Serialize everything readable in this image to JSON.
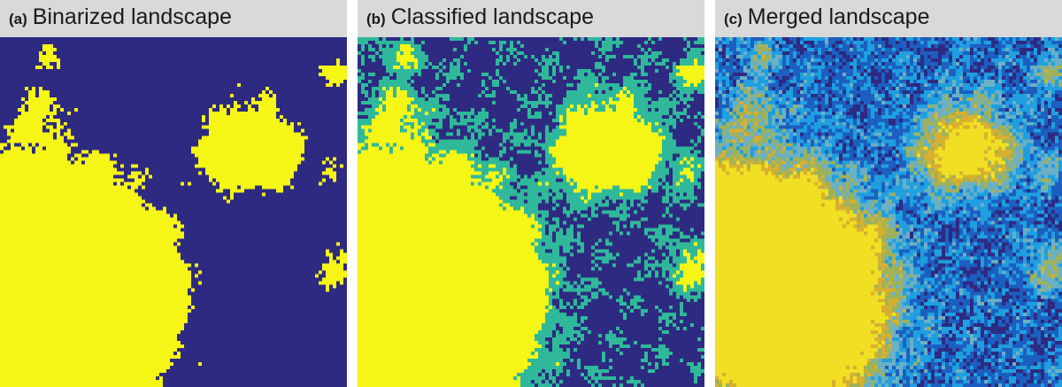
{
  "panels": [
    {
      "letter": "(a)",
      "name": "Binarized landscape"
    },
    {
      "letter": "(b)",
      "name": "Classified landscape"
    },
    {
      "letter": "(c)",
      "name": "Merged landscape"
    }
  ],
  "colors": {
    "background_class": "#2e2a82",
    "habitat_core": "#f5f516",
    "habitat_edge": "#2fb99a",
    "merged_palette": [
      "#2e2a82",
      "#1c5fc0",
      "#1f9fe0",
      "#6bb0c4",
      "#9fb25a",
      "#d8b030",
      "#f0df22"
    ]
  }
}
